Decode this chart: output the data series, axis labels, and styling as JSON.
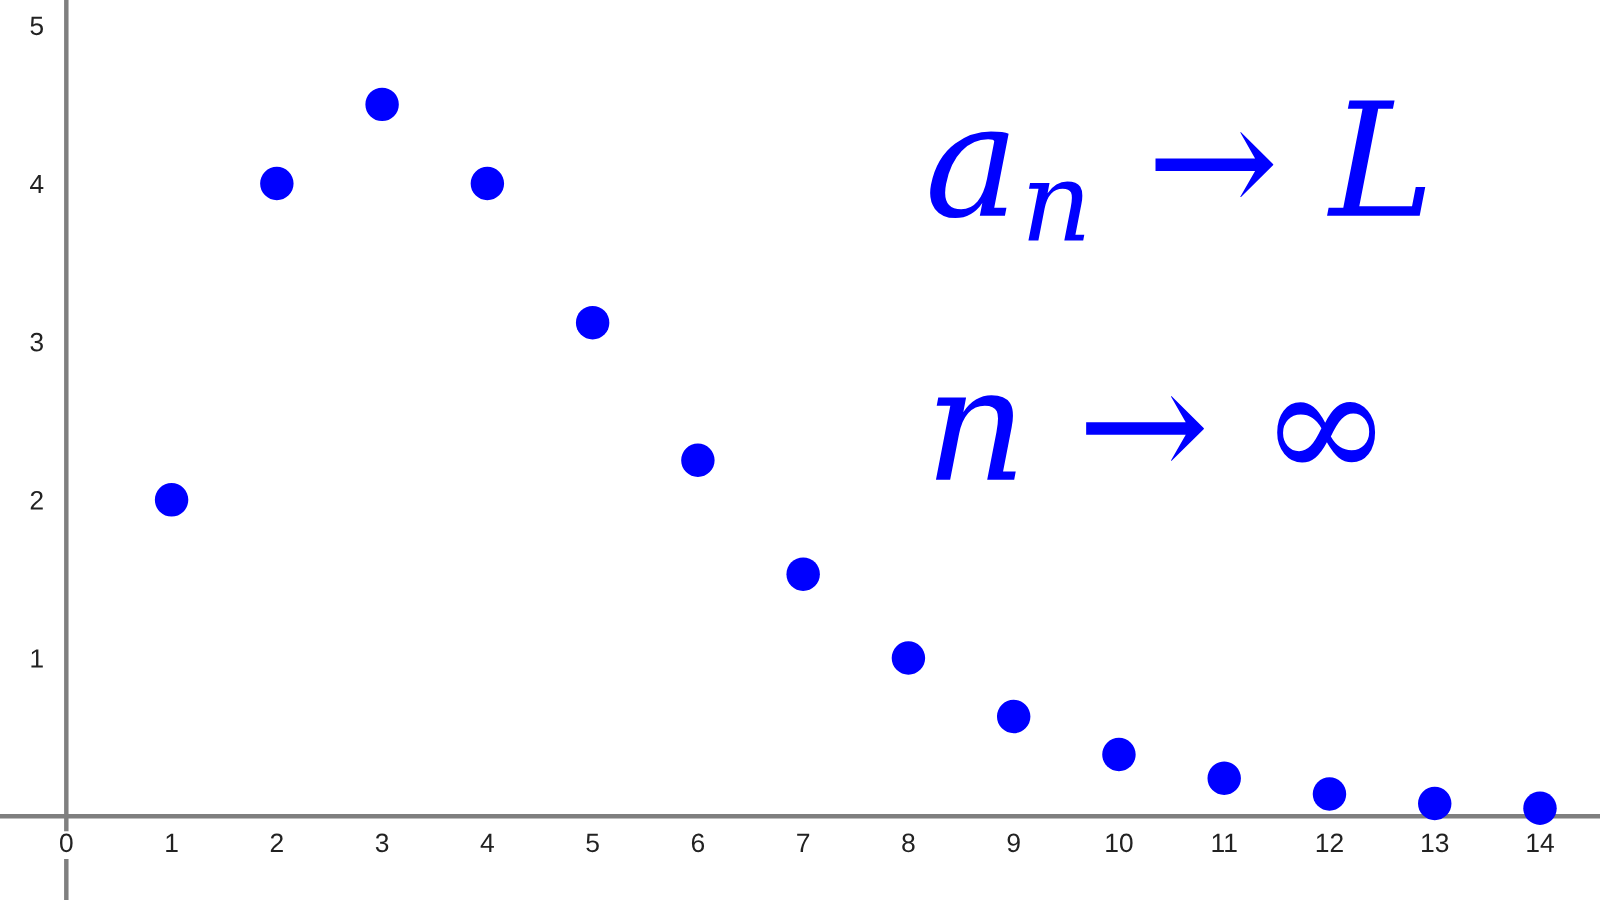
{
  "chart_data": {
    "type": "scatter",
    "x": [
      1,
      2,
      3,
      4,
      5,
      6,
      7,
      8,
      9,
      10,
      11,
      12,
      13,
      14
    ],
    "values": [
      2,
      4,
      4.5,
      4,
      3.12,
      2.25,
      1.53,
      1.0,
      0.63,
      0.39,
      0.24,
      0.14,
      0.08,
      0.05
    ],
    "color": "#0000ff",
    "marker": "circle",
    "grid": false,
    "legend": false,
    "xlim": [
      -0.63,
      14.57
    ],
    "ylim": [
      -0.53,
      5.16
    ],
    "xticks": [
      0,
      1,
      2,
      3,
      4,
      5,
      6,
      7,
      8,
      9,
      10,
      11,
      12,
      13,
      14
    ],
    "yticks": [
      1,
      2,
      3,
      4,
      5
    ],
    "annotations": [
      "a$_{n}$ → L",
      "n → ∞"
    ]
  }
}
